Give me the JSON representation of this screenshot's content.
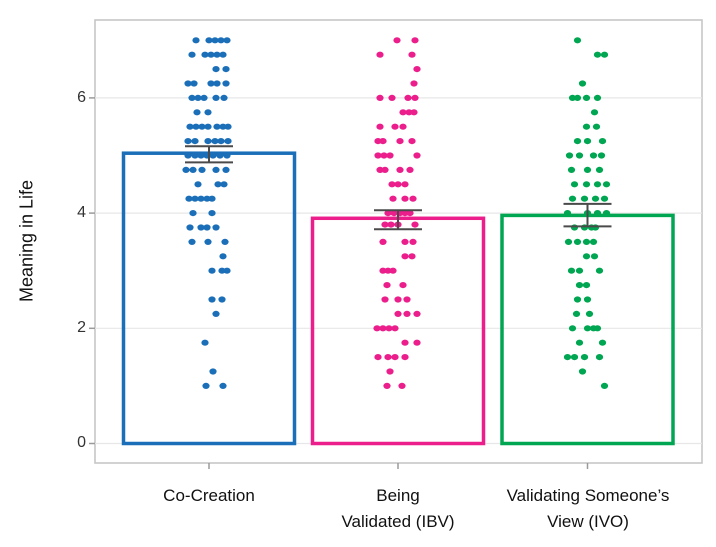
{
  "chart_data": {
    "type": "bar",
    "variant": "bar-means-with-SE-error-bars-and-jittered-points",
    "title": "",
    "ylabel": "Meaning in Life",
    "xlabel": "",
    "ylim": [
      0,
      7.35
    ],
    "ytick_values": [
      0,
      2,
      4,
      6
    ],
    "yticks": [
      "0",
      "2",
      "4",
      "6"
    ],
    "grid": "horizontal",
    "legend": "none",
    "grid_color": "#e7e7e7",
    "panel_border_color": "#c6c6c6",
    "tick_color": "#9a9a9a",
    "error_bar_color": "#4a4a4a",
    "groups": [
      {
        "label": "Co-Creation",
        "color": "#1b6fb8",
        "bar_mean": 5.04,
        "error_low": 4.88,
        "error_high": 5.16,
        "points": [
          [
            7,
            -13
          ],
          [
            7,
            0
          ],
          [
            7,
            6
          ],
          [
            7,
            12
          ],
          [
            7,
            18
          ],
          [
            6.75,
            -17
          ],
          [
            6.75,
            -4
          ],
          [
            6.75,
            2
          ],
          [
            6.75,
            8
          ],
          [
            6.75,
            14
          ],
          [
            6.5,
            7
          ],
          [
            6.5,
            17
          ],
          [
            6.25,
            -21
          ],
          [
            6.25,
            -15
          ],
          [
            6.25,
            2
          ],
          [
            6.25,
            8
          ],
          [
            6.25,
            17
          ],
          [
            6,
            -17
          ],
          [
            6,
            -11
          ],
          [
            6,
            -5
          ],
          [
            6,
            7
          ],
          [
            6,
            15
          ],
          [
            5.75,
            -12
          ],
          [
            5.75,
            -1
          ],
          [
            5.5,
            -19
          ],
          [
            5.5,
            -13
          ],
          [
            5.5,
            -7
          ],
          [
            5.5,
            -1
          ],
          [
            5.5,
            8
          ],
          [
            5.5,
            14
          ],
          [
            5.5,
            19
          ],
          [
            5.25,
            -21
          ],
          [
            5.25,
            -14
          ],
          [
            5.25,
            -1
          ],
          [
            5.25,
            6
          ],
          [
            5.25,
            12
          ],
          [
            5.25,
            19
          ],
          [
            5,
            -21
          ],
          [
            5,
            -14
          ],
          [
            5,
            -8
          ],
          [
            5,
            -2
          ],
          [
            5,
            4
          ],
          [
            5,
            11
          ],
          [
            5,
            18
          ],
          [
            4.75,
            -23
          ],
          [
            4.75,
            -16
          ],
          [
            4.75,
            -7
          ],
          [
            4.75,
            7
          ],
          [
            4.75,
            17
          ],
          [
            4.5,
            -11
          ],
          [
            4.5,
            9
          ],
          [
            4.5,
            15
          ],
          [
            4.25,
            -20
          ],
          [
            4.25,
            -14
          ],
          [
            4.25,
            -8
          ],
          [
            4.25,
            -2
          ],
          [
            4.25,
            3
          ],
          [
            4,
            -16
          ],
          [
            4,
            3
          ],
          [
            3.75,
            -19
          ],
          [
            3.75,
            -8
          ],
          [
            3.75,
            -2
          ],
          [
            3.75,
            7
          ],
          [
            3.5,
            -17
          ],
          [
            3.5,
            -1
          ],
          [
            3.5,
            16
          ],
          [
            3.25,
            14
          ],
          [
            3,
            3
          ],
          [
            3,
            13
          ],
          [
            3,
            18
          ],
          [
            2.5,
            3
          ],
          [
            2.5,
            13
          ],
          [
            2.25,
            7
          ],
          [
            1.75,
            -4
          ],
          [
            1.25,
            4
          ],
          [
            1,
            -3
          ],
          [
            1,
            14
          ]
        ]
      },
      {
        "label": "Being\nValidated (IBV)",
        "color": "#eb1e8c",
        "bar_mean": 3.91,
        "error_low": 3.72,
        "error_high": 4.05,
        "points": [
          [
            7,
            -1
          ],
          [
            7,
            17
          ],
          [
            6.75,
            -18
          ],
          [
            6.75,
            14
          ],
          [
            6.5,
            19
          ],
          [
            6.25,
            16
          ],
          [
            6,
            -18
          ],
          [
            6,
            -6
          ],
          [
            6,
            10
          ],
          [
            6,
            17
          ],
          [
            5.75,
            5
          ],
          [
            5.75,
            11
          ],
          [
            5.75,
            16
          ],
          [
            5.5,
            -18
          ],
          [
            5.5,
            -3
          ],
          [
            5.5,
            5
          ],
          [
            5.25,
            -20
          ],
          [
            5.25,
            -15
          ],
          [
            5.25,
            2
          ],
          [
            5.25,
            14
          ],
          [
            5,
            -20
          ],
          [
            5,
            -14
          ],
          [
            5,
            -8
          ],
          [
            5,
            19
          ],
          [
            4.75,
            -18
          ],
          [
            4.75,
            -13
          ],
          [
            4.75,
            2
          ],
          [
            4.75,
            12
          ],
          [
            4.5,
            -6
          ],
          [
            4.5,
            0
          ],
          [
            4.5,
            7
          ],
          [
            4.25,
            -5
          ],
          [
            4.25,
            7
          ],
          [
            4.25,
            15
          ],
          [
            4,
            -10
          ],
          [
            4,
            -4
          ],
          [
            4,
            2
          ],
          [
            4,
            7
          ],
          [
            4,
            12
          ],
          [
            3.8,
            -13
          ],
          [
            3.8,
            -7
          ],
          [
            3.8,
            0
          ],
          [
            3.8,
            17
          ],
          [
            3.5,
            -15
          ],
          [
            3.5,
            7
          ],
          [
            3.5,
            15
          ],
          [
            3.25,
            7
          ],
          [
            3.25,
            14
          ],
          [
            3,
            -15
          ],
          [
            3,
            -10
          ],
          [
            3,
            -5
          ],
          [
            2.75,
            -11
          ],
          [
            2.75,
            5
          ],
          [
            2.5,
            -13
          ],
          [
            2.5,
            0
          ],
          [
            2.5,
            9
          ],
          [
            2.25,
            0
          ],
          [
            2.25,
            9
          ],
          [
            2.25,
            19
          ],
          [
            2,
            -21
          ],
          [
            2,
            -15
          ],
          [
            2,
            -9
          ],
          [
            2,
            -3
          ],
          [
            1.75,
            7
          ],
          [
            1.75,
            19
          ],
          [
            1.5,
            -20
          ],
          [
            1.5,
            -10
          ],
          [
            1.5,
            -3
          ],
          [
            1.5,
            7
          ],
          [
            1.25,
            -8
          ],
          [
            1,
            -11
          ],
          [
            1,
            4
          ]
        ]
      },
      {
        "label": "Validating Someone’s\nView (IVO)",
        "color": "#00a651",
        "bar_mean": 3.96,
        "error_low": 3.77,
        "error_high": 4.16,
        "points": [
          [
            7,
            -10
          ],
          [
            6.75,
            10
          ],
          [
            6.75,
            17
          ],
          [
            6.25,
            -5
          ],
          [
            6,
            -15
          ],
          [
            6,
            -10
          ],
          [
            6,
            -1
          ],
          [
            6,
            10
          ],
          [
            5.75,
            7
          ],
          [
            5.5,
            -1
          ],
          [
            5.5,
            9
          ],
          [
            5.25,
            -10
          ],
          [
            5.25,
            0
          ],
          [
            5.25,
            15
          ],
          [
            5,
            -18
          ],
          [
            5,
            -8
          ],
          [
            5,
            6
          ],
          [
            5,
            14
          ],
          [
            4.75,
            -16
          ],
          [
            4.75,
            0
          ],
          [
            4.75,
            12
          ],
          [
            4.5,
            -13
          ],
          [
            4.5,
            -1
          ],
          [
            4.5,
            10
          ],
          [
            4.5,
            19
          ],
          [
            4.25,
            -15
          ],
          [
            4.25,
            -3
          ],
          [
            4.25,
            8
          ],
          [
            4.25,
            17
          ],
          [
            4,
            -20
          ],
          [
            4,
            0
          ],
          [
            4,
            10
          ],
          [
            4,
            19
          ],
          [
            3.75,
            -13
          ],
          [
            3.75,
            -3
          ],
          [
            3.75,
            4
          ],
          [
            3.75,
            8
          ],
          [
            3.5,
            -19
          ],
          [
            3.5,
            -10
          ],
          [
            3.5,
            -1
          ],
          [
            3.5,
            6
          ],
          [
            3.25,
            -1
          ],
          [
            3.25,
            7
          ],
          [
            3,
            -16
          ],
          [
            3,
            -8
          ],
          [
            3,
            12
          ],
          [
            2.75,
            -8
          ],
          [
            2.75,
            -1
          ],
          [
            2.5,
            -10
          ],
          [
            2.5,
            0
          ],
          [
            2.25,
            -11
          ],
          [
            2.25,
            2
          ],
          [
            2,
            -15
          ],
          [
            2,
            0
          ],
          [
            2,
            6
          ],
          [
            2,
            10
          ],
          [
            1.75,
            -8
          ],
          [
            1.75,
            15
          ],
          [
            1.5,
            -20
          ],
          [
            1.5,
            -13
          ],
          [
            1.5,
            -3
          ],
          [
            1.5,
            12
          ],
          [
            1.25,
            -5
          ],
          [
            1,
            17
          ]
        ]
      }
    ]
  }
}
